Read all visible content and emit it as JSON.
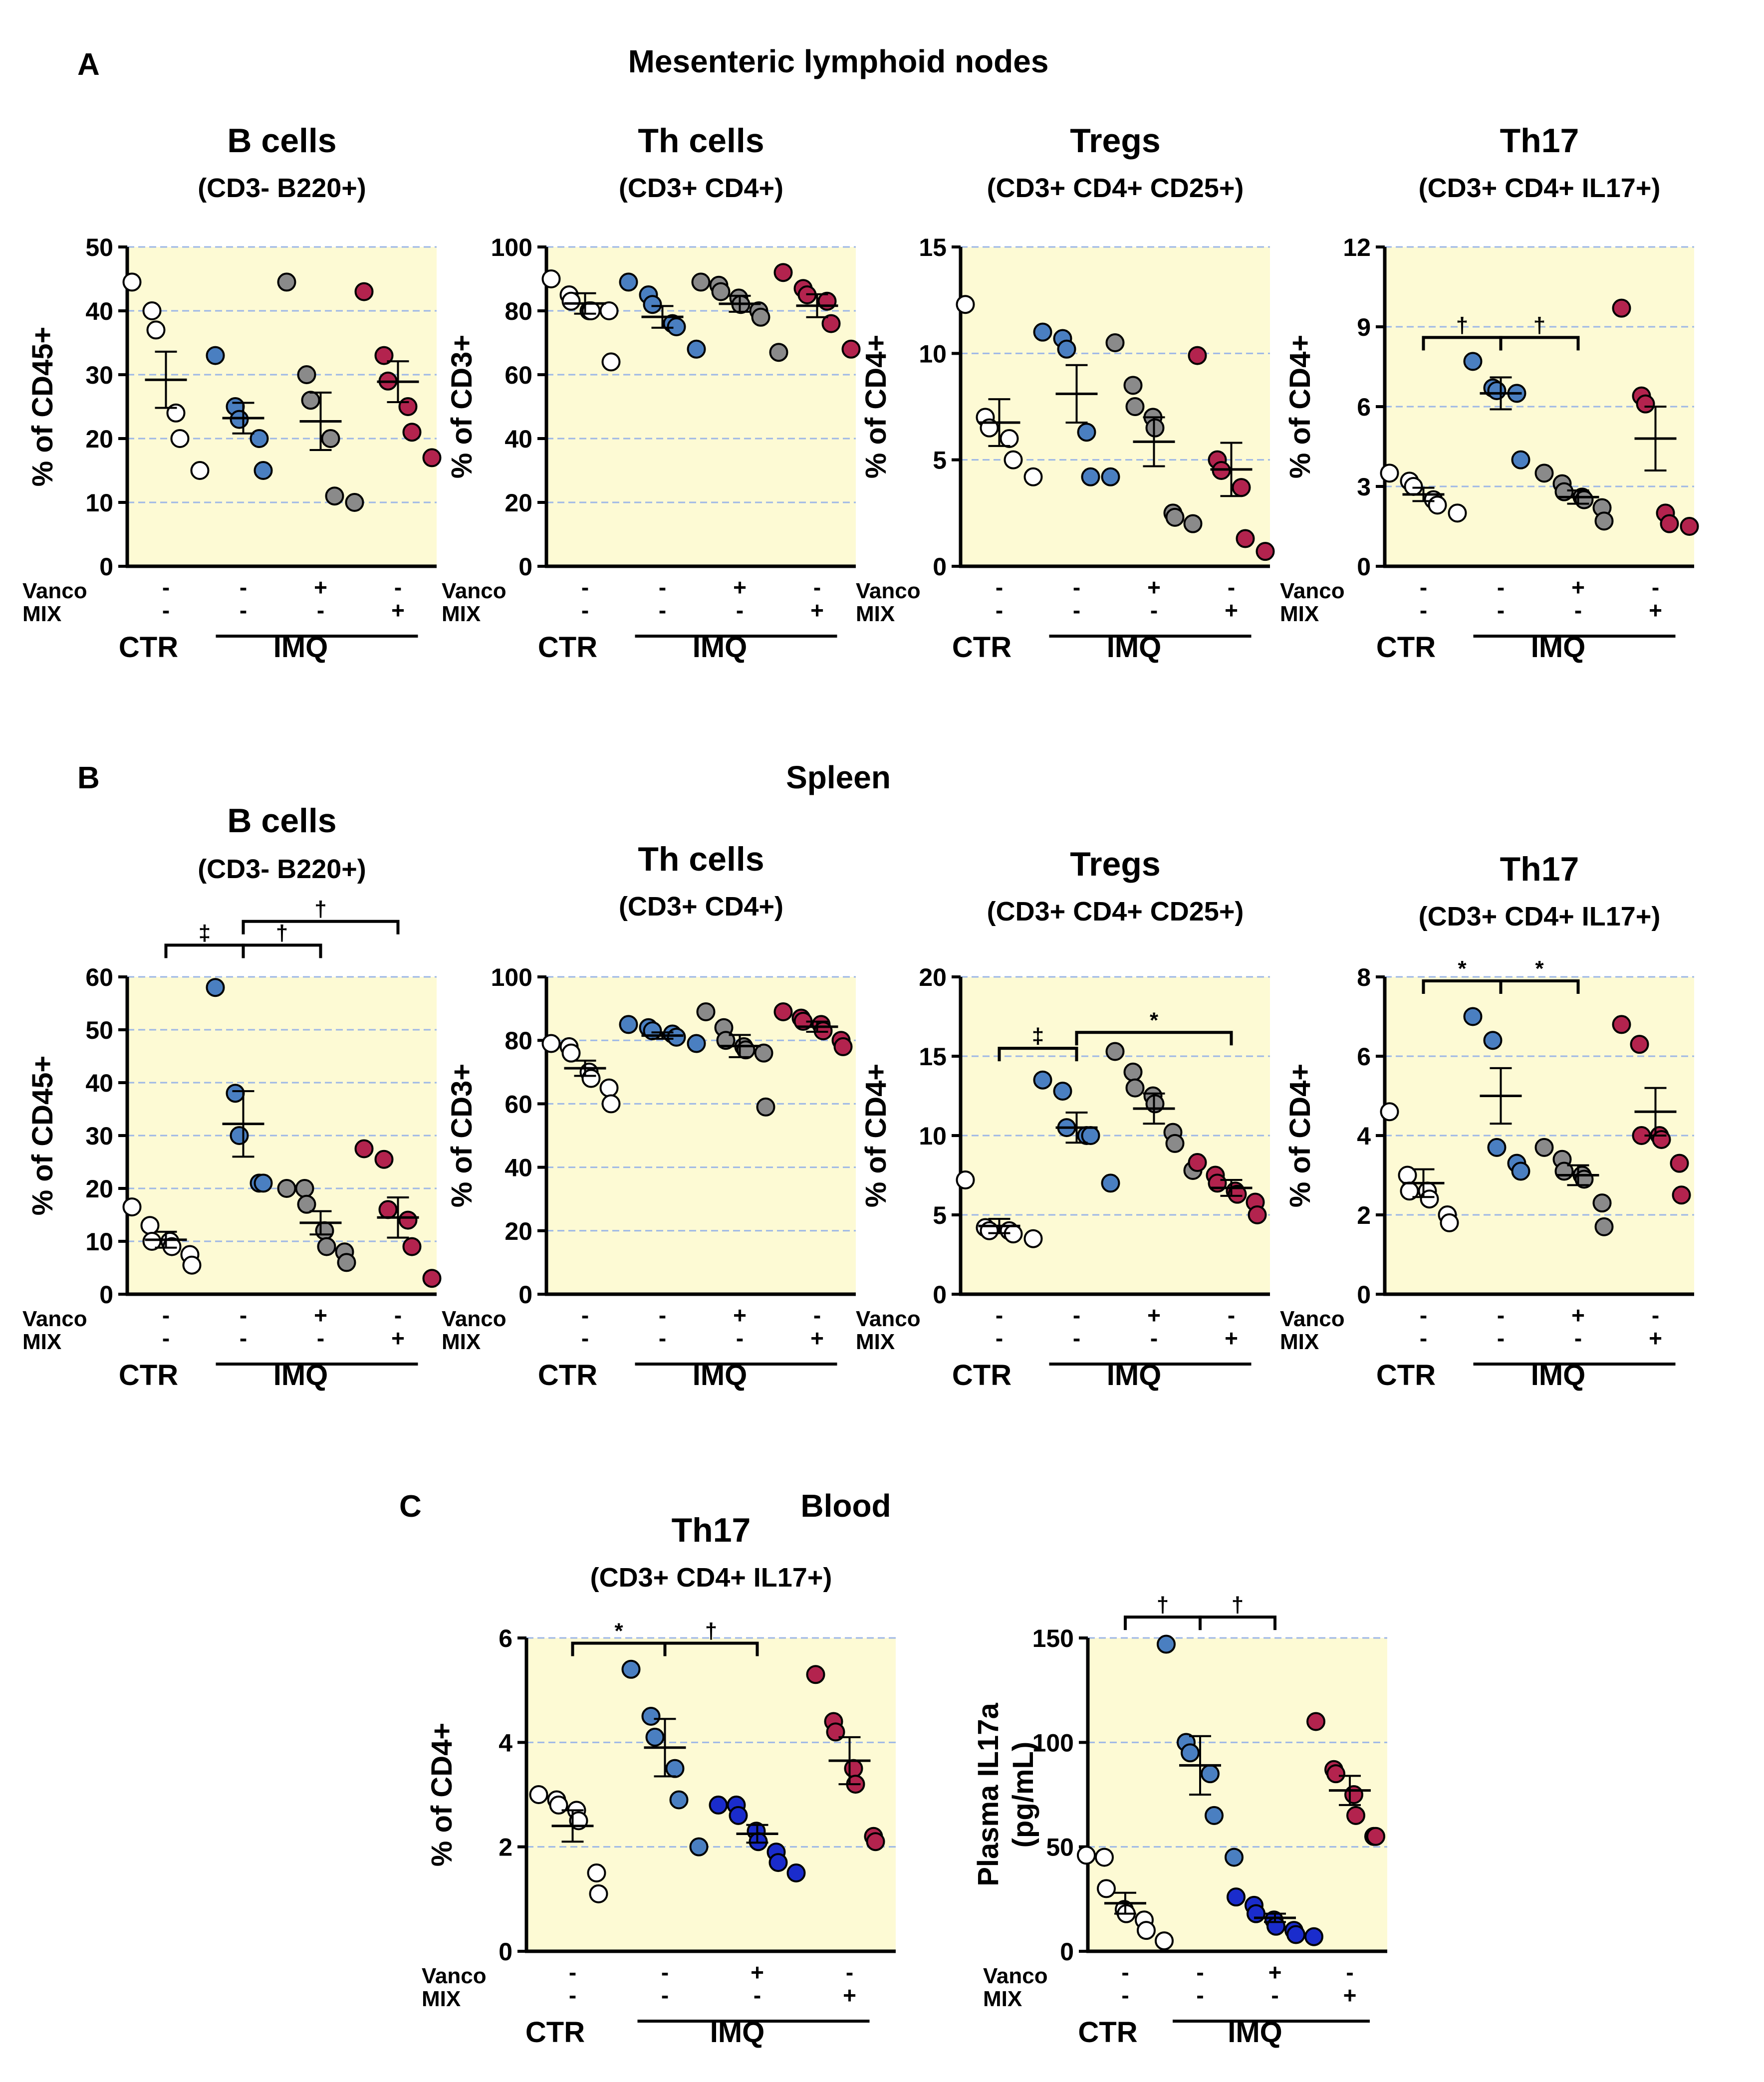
{
  "panel_labels": [
    "A",
    "B",
    "C"
  ],
  "section_titles": [
    "Mesenteric lymphoid nodes",
    "Spleen",
    "Blood"
  ],
  "colors": {
    "plot_bg": "#fdfad4",
    "grid": "#9db7e6",
    "ctr": "#ffffff",
    "imq": "#4a7fc1",
    "vanco": "#8a8a8a",
    "vanco_blood": "#1a2ccc",
    "mix": "#b3234e"
  },
  "condition_labels": {
    "vanco": "Vanco",
    "mix": "MIX",
    "ctr": "CTR",
    "imq": "IMQ",
    "vanco_signs": [
      "-",
      "-",
      "+",
      "-"
    ],
    "mix_signs": [
      "-",
      "-",
      "-",
      "+"
    ]
  },
  "chart_data": [
    {
      "id": "a1",
      "section": "A",
      "type": "scatter",
      "title": "B cells",
      "subtitle": "(CD3- B220+)",
      "ylabel": "% of CD45+",
      "ylim": [
        0,
        50
      ],
      "yticks": [
        0,
        10,
        20,
        30,
        40,
        50
      ],
      "groups": [
        "CTR",
        "IMQ",
        "IMQ+Vanco",
        "IMQ+MIX"
      ],
      "points": [
        [
          44.5,
          40,
          37,
          24,
          20,
          15
        ],
        [
          33,
          25,
          23,
          20,
          15
        ],
        [
          44.5,
          30,
          26,
          20,
          11,
          10
        ],
        [
          43,
          33,
          29,
          25,
          21,
          17
        ]
      ],
      "mean": [
        29.2,
        23.2,
        22.7,
        28.9
      ],
      "sem": [
        4.4,
        2.4,
        4.5,
        3.2
      ],
      "significance": []
    },
    {
      "id": "a2",
      "section": "A",
      "type": "scatter",
      "title": "Th cells",
      "subtitle": "(CD3+ CD4+)",
      "ylabel": "% of CD3+",
      "ylim": [
        0,
        100
      ],
      "yticks": [
        0,
        20,
        40,
        60,
        80,
        100
      ],
      "groups": [
        "CTR",
        "IMQ",
        "IMQ+Vanco",
        "IMQ+MIX"
      ],
      "points": [
        [
          90,
          85,
          83,
          80,
          80,
          80,
          64
        ],
        [
          89,
          85,
          82,
          76,
          75,
          68
        ],
        [
          89,
          88,
          86,
          84,
          82,
          80,
          78,
          67
        ],
        [
          92,
          87,
          85,
          83,
          76,
          68
        ]
      ],
      "mean": [
        82.3,
        78.1,
        82.2,
        81.6
      ],
      "sem": [
        3.2,
        3.4,
        2.5,
        3.6
      ],
      "significance": []
    },
    {
      "id": "a3",
      "section": "A",
      "type": "scatter",
      "title": "Tregs",
      "subtitle": "(CD3+ CD4+ CD25+)",
      "ylabel": "% of CD4+",
      "ylim": [
        0,
        15
      ],
      "yticks": [
        0,
        5,
        10,
        15
      ],
      "groups": [
        "CTR",
        "IMQ",
        "IMQ+Vanco",
        "IMQ+MIX"
      ],
      "points": [
        [
          12.3,
          7,
          6.5,
          6,
          5,
          4.2
        ],
        [
          11,
          10.7,
          10.2,
          6.3,
          4.2,
          4.2
        ],
        [
          10.5,
          8.5,
          7.5,
          7,
          6.5,
          2.5,
          2.3,
          2
        ],
        [
          9.9,
          5,
          4.5,
          3.7,
          1.3,
          0.7
        ]
      ],
      "mean": [
        6.75,
        8.1,
        5.85,
        4.55
      ],
      "sem": [
        1.1,
        1.35,
        1.15,
        1.25
      ],
      "significance": []
    },
    {
      "id": "a4",
      "section": "A",
      "type": "scatter",
      "title": "Th17",
      "subtitle": "(CD3+ CD4+ IL17+)",
      "ylabel": "% of CD4+",
      "ylim": [
        0,
        12
      ],
      "yticks": [
        0,
        3,
        6,
        9,
        12
      ],
      "groups": [
        "CTR",
        "IMQ",
        "IMQ+Vanco",
        "IMQ+MIX"
      ],
      "points": [
        [
          3.5,
          3.2,
          3,
          2.5,
          2.3,
          2
        ],
        [
          7.7,
          6.7,
          6.6,
          6.5,
          4
        ],
        [
          3.5,
          3.1,
          2.8,
          2.6,
          2.5,
          2.2,
          1.7
        ],
        [
          9.7,
          6.4,
          6.1,
          2,
          1.6,
          1.5
        ]
      ],
      "mean": [
        2.7,
        6.5,
        2.6,
        4.8
      ],
      "sem": [
        0.25,
        0.6,
        0.25,
        1.2
      ],
      "significance": [
        {
          "from": 0,
          "to": 1,
          "label": "†",
          "y": 8.6
        },
        {
          "from": 1,
          "to": 2,
          "label": "†",
          "y": 8.6
        }
      ]
    },
    {
      "id": "b1",
      "section": "B",
      "type": "scatter",
      "title": "B cells",
      "subtitle": "(CD3- B220+)",
      "ylabel": "% of CD45+",
      "ylim": [
        0,
        60
      ],
      "yticks": [
        0,
        10,
        20,
        30,
        40,
        50,
        60
      ],
      "groups": [
        "CTR",
        "IMQ",
        "IMQ+Vanco",
        "IMQ+MIX"
      ],
      "points": [
        [
          16.5,
          13,
          10,
          10,
          9,
          7.5,
          5.5
        ],
        [
          58,
          38,
          30,
          21,
          21
        ],
        [
          20,
          20,
          17,
          12,
          9,
          8,
          6
        ],
        [
          27.5,
          25.5,
          16,
          14,
          9,
          3
        ]
      ],
      "mean": [
        10.3,
        32.2,
        13.5,
        14.5
      ],
      "sem": [
        1.5,
        6.2,
        2.2,
        3.8
      ],
      "significance": [
        {
          "from": 0,
          "to": 1,
          "label": "‡",
          "y": 66
        },
        {
          "from": 1,
          "to": 2,
          "label": "†",
          "y": 66
        },
        {
          "from": 1,
          "to": 3,
          "label": "†",
          "y": 70.5
        }
      ]
    },
    {
      "id": "b2",
      "section": "B",
      "type": "scatter",
      "title": "Th cells",
      "subtitle": "(CD3+ CD4+)",
      "ylabel": "% of CD3+",
      "ylim": [
        0,
        100
      ],
      "yticks": [
        0,
        20,
        40,
        60,
        80,
        100
      ],
      "groups": [
        "CTR",
        "IMQ",
        "IMQ+Vanco",
        "IMQ+MIX"
      ],
      "points": [
        [
          79,
          78,
          76,
          70,
          68,
          65,
          60
        ],
        [
          85,
          84,
          83,
          82,
          81,
          79
        ],
        [
          89,
          84,
          80,
          78,
          77,
          76,
          59
        ],
        [
          89,
          87,
          86,
          85,
          83,
          80,
          78
        ]
      ],
      "mean": [
        71.2,
        81.5,
        78.2,
        84.3
      ],
      "sem": [
        2.4,
        1.0,
        3.5,
        1.6
      ],
      "significance": []
    },
    {
      "id": "b3",
      "section": "B",
      "type": "scatter",
      "title": "Tregs",
      "subtitle": "(CD3+ CD4+ CD25+)",
      "ylabel": "% of CD4+",
      "ylim": [
        0,
        20
      ],
      "yticks": [
        0,
        5,
        10,
        15,
        20
      ],
      "groups": [
        "CTR",
        "IMQ",
        "IMQ+Vanco",
        "IMQ+MIX"
      ],
      "points": [
        [
          7.2,
          4.2,
          4,
          4,
          3.8,
          3.5
        ],
        [
          13.5,
          12.8,
          10.5,
          10,
          10,
          7
        ],
        [
          15.3,
          14,
          13,
          12.5,
          12,
          10.2,
          9.5,
          7.8
        ],
        [
          8.3,
          7.5,
          7,
          6.5,
          6.3,
          5.8,
          5
        ]
      ],
      "mean": [
        4.3,
        10.5,
        11.7,
        6.7
      ],
      "sem": [
        0.45,
        0.95,
        0.95,
        0.5
      ],
      "significance": [
        {
          "from": 0,
          "to": 1,
          "label": "‡",
          "y": 15.5
        },
        {
          "from": 1,
          "to": 3,
          "label": "*",
          "y": 16.5
        }
      ]
    },
    {
      "id": "b4",
      "section": "B",
      "type": "scatter",
      "title": "Th17",
      "subtitle": "(CD3+ CD4+ IL17+)",
      "ylabel": "% of CD4+",
      "ylim": [
        0,
        8
      ],
      "yticks": [
        0,
        2,
        4,
        6,
        8
      ],
      "groups": [
        "CTR",
        "IMQ",
        "IMQ+Vanco",
        "IMQ+MIX"
      ],
      "points": [
        [
          4.6,
          3,
          2.6,
          2.6,
          2.4,
          2,
          1.8
        ],
        [
          7,
          6.4,
          3.7,
          3.3,
          3.1
        ],
        [
          3.7,
          3.4,
          3.1,
          3,
          2.9,
          2.3,
          1.7
        ],
        [
          6.8,
          6.3,
          4,
          4,
          3.9,
          3.3,
          2.5
        ]
      ],
      "mean": [
        2.8,
        5.0,
        3.0,
        4.6
      ],
      "sem": [
        0.35,
        0.7,
        0.25,
        0.6
      ],
      "significance": [
        {
          "from": 0,
          "to": 1,
          "label": "*",
          "y": 7.9
        },
        {
          "from": 1,
          "to": 2,
          "label": "*",
          "y": 7.9
        }
      ]
    },
    {
      "id": "c1",
      "section": "C",
      "type": "scatter",
      "title": "Th17",
      "subtitle": "(CD3+ CD4+ IL17+)",
      "ylabel": "% of CD4+",
      "ylim": [
        0,
        6
      ],
      "yticks": [
        0,
        2,
        4,
        6
      ],
      "groups": [
        "CTR",
        "IMQ",
        "IMQ+Vanco",
        "IMQ+MIX"
      ],
      "points": [
        [
          3,
          2.9,
          2.8,
          2.7,
          2.5,
          1.5,
          1.1
        ],
        [
          5.4,
          4.5,
          4.1,
          3.5,
          2.9,
          2
        ],
        [
          2.8,
          2.8,
          2.6,
          2.3,
          2.1,
          1.9,
          1.7,
          1.5
        ],
        [
          5.3,
          4.4,
          4.2,
          3.5,
          3.2,
          2.2,
          2.1
        ]
      ],
      "mean": [
        2.4,
        3.9,
        2.25,
        3.65
      ],
      "sem": [
        0.3,
        0.55,
        0.17,
        0.45
      ],
      "significance": [
        {
          "from": 0,
          "to": 1,
          "label": "*",
          "y": 5.9
        },
        {
          "from": 1,
          "to": 2,
          "label": "†",
          "y": 5.9
        }
      ]
    },
    {
      "id": "c2",
      "section": "C",
      "type": "scatter",
      "title": "",
      "subtitle": "",
      "ylabel": "Plasma IL17a",
      "ylabel2": "(pg/mL)",
      "ylim": [
        0,
        150
      ],
      "yticks": [
        0,
        50,
        100,
        150
      ],
      "groups": [
        "CTR",
        "IMQ",
        "IMQ+Vanco",
        "IMQ+MIX"
      ],
      "points": [
        [
          46,
          45,
          30,
          20,
          18,
          15,
          10,
          5
        ],
        [
          147,
          100,
          95,
          85,
          65,
          45
        ],
        [
          26,
          22,
          18,
          15,
          12,
          10,
          8,
          7
        ],
        [
          110,
          87,
          85,
          75,
          65,
          55,
          55
        ]
      ],
      "mean": [
        23,
        89,
        16,
        77
      ],
      "sem": [
        5,
        14,
        2,
        7
      ],
      "significance": [
        {
          "from": 0,
          "to": 1,
          "label": "†",
          "y": 160
        },
        {
          "from": 1,
          "to": 2,
          "label": "†",
          "y": 160
        }
      ]
    }
  ]
}
